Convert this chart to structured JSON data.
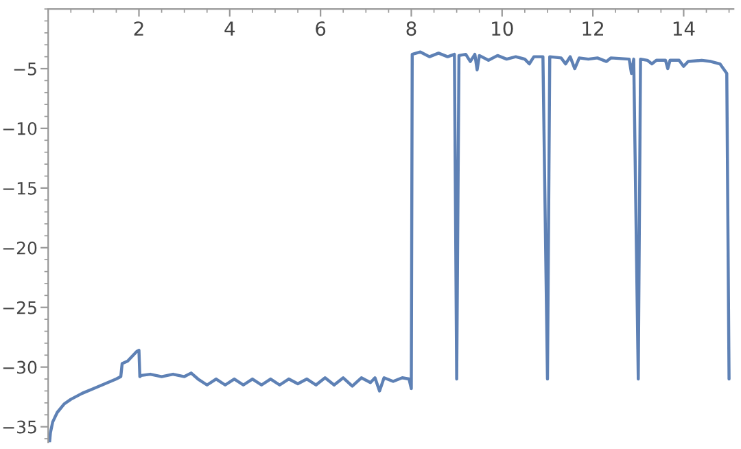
{
  "chart_data": {
    "type": "line",
    "color": "#5e81b5",
    "line_style": "solid",
    "x": [
      0.03,
      0.05,
      0.1,
      0.2,
      0.35,
      0.5,
      0.75,
      1.0,
      1.25,
      1.5,
      1.6,
      1.63,
      1.75,
      1.95,
      2.0,
      2.02,
      2.05,
      2.25,
      2.5,
      2.75,
      3.0,
      3.15,
      3.3,
      3.5,
      3.7,
      3.9,
      4.1,
      4.3,
      4.5,
      4.7,
      4.9,
      5.1,
      5.3,
      5.5,
      5.7,
      5.9,
      6.1,
      6.3,
      6.5,
      6.7,
      6.9,
      7.1,
      7.2,
      7.3,
      7.4,
      7.6,
      7.8,
      7.95,
      8.0,
      8.02,
      8.2,
      8.4,
      8.6,
      8.8,
      8.95,
      9.0,
      9.05,
      9.2,
      9.3,
      9.4,
      9.45,
      9.5,
      9.7,
      9.9,
      10.1,
      10.3,
      10.5,
      10.6,
      10.7,
      10.9,
      11.0,
      11.05,
      11.3,
      11.4,
      11.5,
      11.6,
      11.7,
      11.9,
      12.1,
      12.3,
      12.4,
      12.8,
      12.85,
      12.9,
      13.0,
      13.05,
      13.2,
      13.3,
      13.4,
      13.6,
      13.65,
      13.7,
      13.9,
      14.0,
      14.1,
      14.4,
      14.6,
      14.8,
      14.95,
      15.0
    ],
    "values": [
      -36.3,
      -35.5,
      -34.6,
      -33.8,
      -33.1,
      -32.7,
      -32.2,
      -31.8,
      -31.4,
      -31.0,
      -30.8,
      -29.7,
      -29.5,
      -28.7,
      -28.6,
      -30.8,
      -30.7,
      -30.6,
      -30.8,
      -30.6,
      -30.8,
      -30.5,
      -31.0,
      -31.5,
      -31.0,
      -31.5,
      -31.0,
      -31.5,
      -31.0,
      -31.5,
      -31.0,
      -31.5,
      -31.0,
      -31.4,
      -31.0,
      -31.5,
      -30.9,
      -31.5,
      -30.9,
      -31.6,
      -30.9,
      -31.3,
      -30.9,
      -32.0,
      -30.9,
      -31.2,
      -30.9,
      -31.0,
      -31.8,
      -3.8,
      -3.6,
      -4.0,
      -3.7,
      -4.0,
      -3.8,
      -31.0,
      -3.9,
      -3.8,
      -4.4,
      -3.8,
      -5.1,
      -3.9,
      -4.3,
      -3.9,
      -4.2,
      -4.0,
      -4.2,
      -4.6,
      -4.0,
      -4.0,
      -31.0,
      -4.0,
      -4.1,
      -4.6,
      -4.0,
      -5.0,
      -4.1,
      -4.2,
      -4.1,
      -4.4,
      -4.1,
      -4.2,
      -5.4,
      -4.2,
      -31.0,
      -4.2,
      -4.3,
      -4.6,
      -4.3,
      -4.3,
      -5.0,
      -4.3,
      -4.3,
      -4.8,
      -4.4,
      -4.3,
      -4.4,
      -4.6,
      -5.4,
      -31.0
    ],
    "xlim": [
      0,
      15.1
    ],
    "ylim": [
      -36.3,
      0
    ],
    "xticks": [
      2,
      4,
      6,
      8,
      10,
      12,
      14
    ],
    "yticks": [
      -5,
      -10,
      -15,
      -20,
      -25,
      -30,
      -35
    ],
    "grid": false
  }
}
